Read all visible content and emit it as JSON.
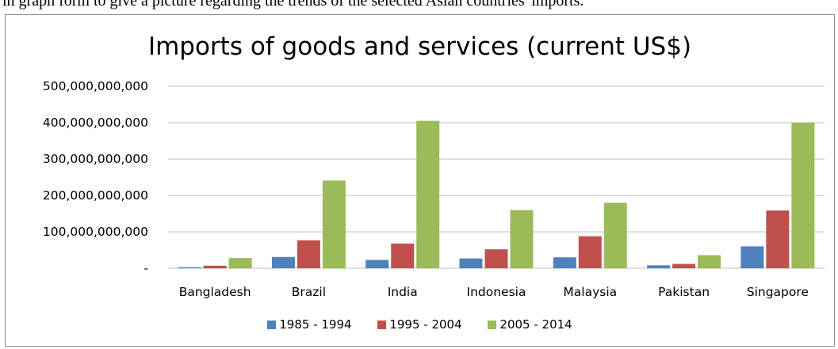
{
  "caption": "in graph form to give a picture regarding the trends of the selected Asian countries' imports.",
  "colors": {
    "series1": "#4f81bd",
    "series2": "#c0504d",
    "series3": "#9bbb59",
    "axis": "#bfbfbf",
    "grid": "#bfbfbf"
  },
  "chart_data": {
    "type": "bar",
    "title": "Imports of goods and services (current US$)",
    "categories": [
      "Bangladesh",
      "Brazil",
      "India",
      "Indonesia",
      "Malaysia",
      "Pakistan",
      "Singapore"
    ],
    "series": [
      {
        "name": "1985 - 1994",
        "values": [
          3000000000,
          31000000000,
          23000000000,
          27000000000,
          30000000000,
          8000000000,
          60000000000
        ]
      },
      {
        "name": "1995 - 2004",
        "values": [
          7000000000,
          77000000000,
          68000000000,
          52000000000,
          88000000000,
          12000000000,
          159000000000
        ]
      },
      {
        "name": "2005 - 2014",
        "values": [
          28000000000,
          241000000000,
          405000000000,
          160000000000,
          180000000000,
          36000000000,
          400000000000
        ]
      }
    ],
    "yticks": [
      "-",
      "100,000,000,000",
      "200,000,000,000",
      "300,000,000,000",
      "400,000,000,000",
      "500,000,000,000"
    ],
    "ylim": [
      0,
      500000000000
    ],
    "grid": true,
    "legend": "bottom"
  }
}
